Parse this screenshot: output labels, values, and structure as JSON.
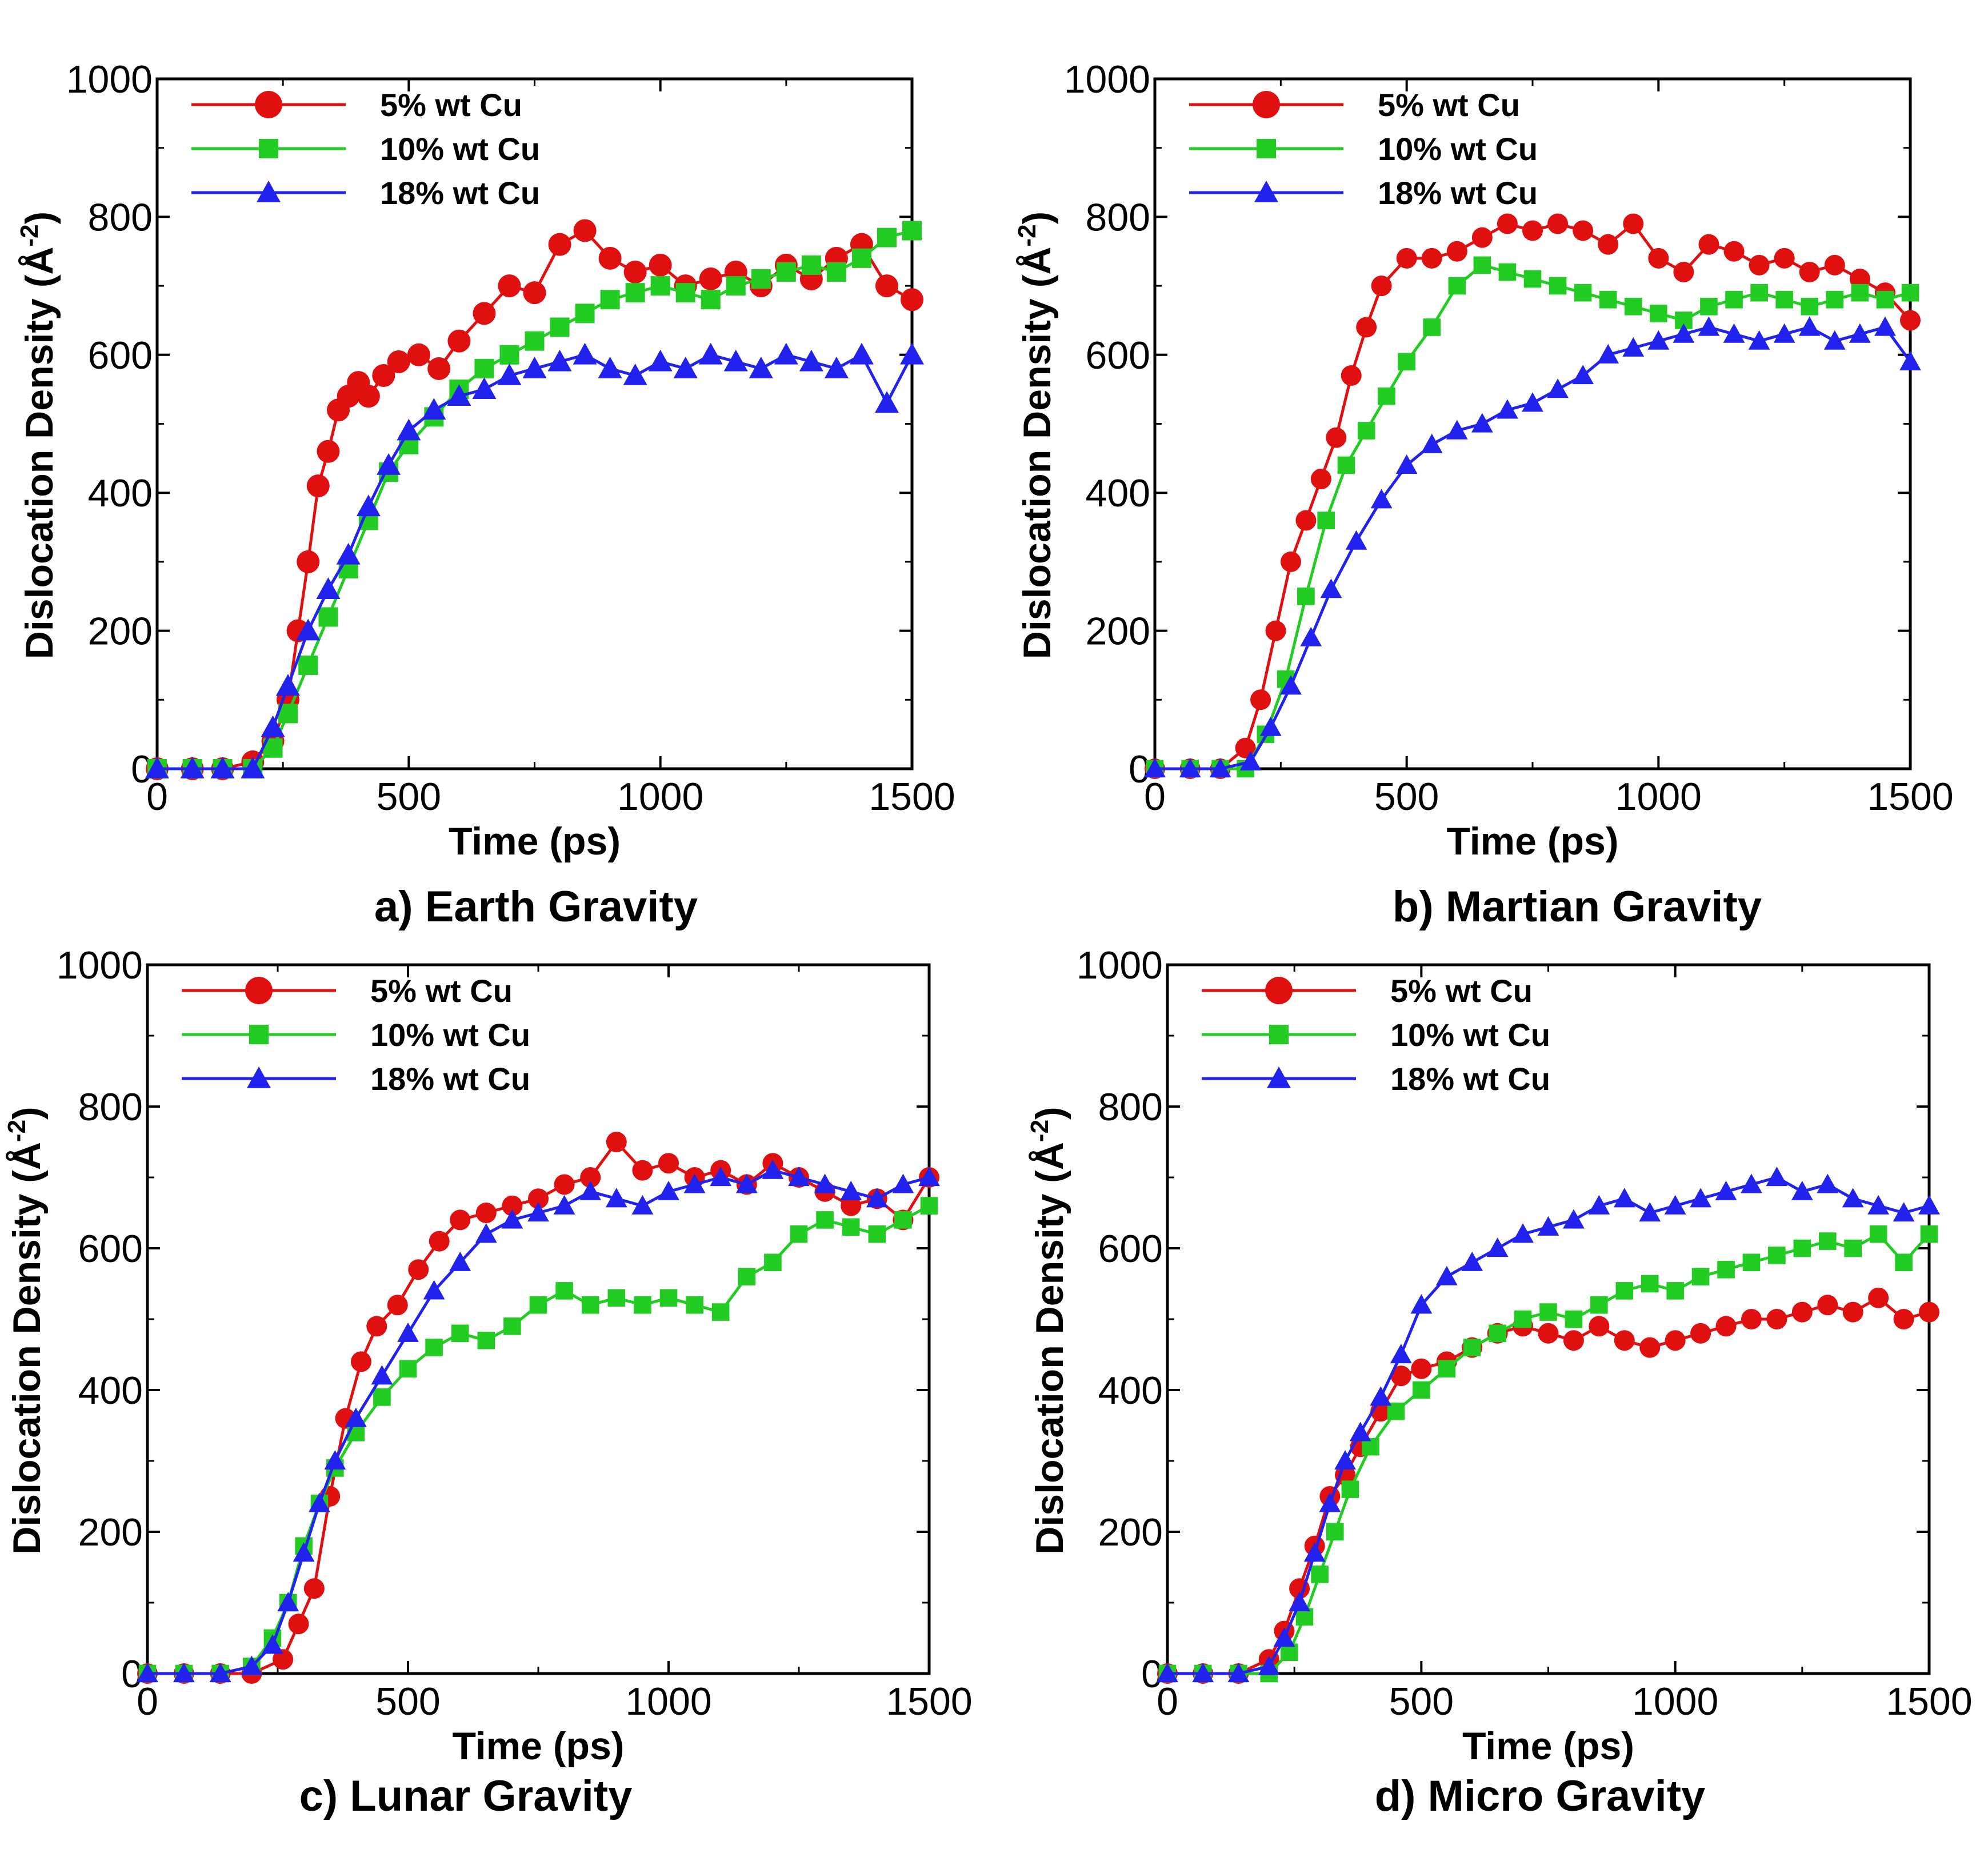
{
  "chart_data": [
    {
      "type": "line",
      "caption": "a) Earth Gravity",
      "xlabel": "Time (ps)",
      "ylabel": "Dislocation Density (Å",
      "ylabel_sup": "-2",
      "ylabel_close": ")",
      "xlim": [
        0,
        1500
      ],
      "ylim": [
        0,
        1000
      ],
      "xticks": [
        "0",
        "500",
        "1000",
        "1500"
      ],
      "yticks": [
        "0",
        "200",
        "400",
        "600",
        "800",
        "1000"
      ],
      "legend": "top-left",
      "series": [
        {
          "name": "5% wt Cu",
          "color": "#e01010",
          "marker": "circle",
          "x": [
            0,
            70,
            130,
            190,
            230,
            260,
            280,
            300,
            320,
            340,
            360,
            380,
            400,
            420,
            450,
            480,
            520,
            560,
            600,
            650,
            700,
            750,
            800,
            850,
            900,
            950,
            1000,
            1050,
            1100,
            1150,
            1200,
            1250,
            1300,
            1350,
            1400,
            1450,
            1500
          ],
          "y": [
            0,
            0,
            0,
            10,
            40,
            100,
            200,
            300,
            410,
            460,
            520,
            540,
            560,
            540,
            570,
            590,
            600,
            580,
            620,
            660,
            700,
            690,
            760,
            780,
            740,
            720,
            730,
            700,
            710,
            720,
            700,
            730,
            710,
            740,
            760,
            700,
            680
          ]
        },
        {
          "name": "10% wt Cu",
          "color": "#22cc22",
          "marker": "square",
          "x": [
            0,
            70,
            130,
            190,
            230,
            260,
            300,
            340,
            380,
            420,
            460,
            500,
            550,
            600,
            650,
            700,
            750,
            800,
            850,
            900,
            950,
            1000,
            1050,
            1100,
            1150,
            1200,
            1250,
            1300,
            1350,
            1400,
            1450,
            1500
          ],
          "y": [
            0,
            0,
            0,
            0,
            30,
            80,
            150,
            220,
            290,
            360,
            430,
            470,
            510,
            550,
            580,
            600,
            620,
            640,
            660,
            680,
            690,
            700,
            690,
            680,
            700,
            710,
            720,
            730,
            720,
            740,
            770,
            780
          ]
        },
        {
          "name": "18% wt Cu",
          "color": "#2222ee",
          "marker": "triangle",
          "x": [
            0,
            70,
            130,
            190,
            230,
            260,
            300,
            340,
            380,
            420,
            460,
            500,
            550,
            600,
            650,
            700,
            750,
            800,
            850,
            900,
            950,
            1000,
            1050,
            1100,
            1150,
            1200,
            1250,
            1300,
            1350,
            1400,
            1450,
            1500
          ],
          "y": [
            0,
            0,
            0,
            0,
            60,
            120,
            200,
            260,
            310,
            380,
            440,
            490,
            520,
            540,
            550,
            570,
            580,
            590,
            600,
            580,
            570,
            590,
            580,
            600,
            590,
            580,
            600,
            590,
            580,
            600,
            530,
            600
          ]
        }
      ]
    },
    {
      "type": "line",
      "caption": "b) Martian Gravity",
      "xlabel": "Time (ps)",
      "ylabel": "Dislocation Density (Å",
      "ylabel_sup": "-2",
      "ylabel_close": ")",
      "xlim": [
        0,
        1500
      ],
      "ylim": [
        0,
        1000
      ],
      "xticks": [
        "0",
        "500",
        "1000",
        "1500"
      ],
      "yticks": [
        "0",
        "200",
        "400",
        "600",
        "800",
        "1000"
      ],
      "legend": "top-left",
      "series": [
        {
          "name": "5% wt Cu",
          "color": "#e01010",
          "marker": "circle",
          "x": [
            0,
            70,
            130,
            180,
            210,
            240,
            270,
            300,
            330,
            360,
            390,
            420,
            450,
            500,
            550,
            600,
            650,
            700,
            750,
            800,
            850,
            900,
            950,
            1000,
            1050,
            1100,
            1150,
            1200,
            1250,
            1300,
            1350,
            1400,
            1450,
            1500
          ],
          "y": [
            0,
            0,
            0,
            30,
            100,
            200,
            300,
            360,
            420,
            480,
            570,
            640,
            700,
            740,
            740,
            750,
            770,
            790,
            780,
            790,
            780,
            760,
            790,
            740,
            720,
            760,
            750,
            730,
            740,
            720,
            730,
            710,
            690,
            650
          ]
        },
        {
          "name": "10% wt Cu",
          "color": "#22cc22",
          "marker": "square",
          "x": [
            0,
            70,
            130,
            180,
            220,
            260,
            300,
            340,
            380,
            420,
            460,
            500,
            550,
            600,
            650,
            700,
            750,
            800,
            850,
            900,
            950,
            1000,
            1050,
            1100,
            1150,
            1200,
            1250,
            1300,
            1350,
            1400,
            1450,
            1500
          ],
          "y": [
            0,
            0,
            0,
            0,
            50,
            130,
            250,
            360,
            440,
            490,
            540,
            590,
            640,
            700,
            730,
            720,
            710,
            700,
            690,
            680,
            670,
            660,
            650,
            670,
            680,
            690,
            680,
            670,
            680,
            690,
            680,
            690
          ]
        },
        {
          "name": "18% wt Cu",
          "color": "#2222ee",
          "marker": "triangle",
          "x": [
            0,
            70,
            130,
            190,
            230,
            270,
            310,
            350,
            400,
            450,
            500,
            550,
            600,
            650,
            700,
            750,
            800,
            850,
            900,
            950,
            1000,
            1050,
            1100,
            1150,
            1200,
            1250,
            1300,
            1350,
            1400,
            1450,
            1500
          ],
          "y": [
            0,
            0,
            0,
            10,
            60,
            120,
            190,
            260,
            330,
            390,
            440,
            470,
            490,
            500,
            520,
            530,
            550,
            570,
            600,
            610,
            620,
            630,
            640,
            630,
            620,
            630,
            640,
            620,
            630,
            640,
            590
          ]
        }
      ]
    },
    {
      "type": "line",
      "caption": "c) Lunar Gravity",
      "xlabel": "Time (ps)",
      "ylabel": "Dislocation Density (Å",
      "ylabel_sup": "-2",
      "ylabel_close": ")",
      "xlim": [
        0,
        1500
      ],
      "ylim": [
        0,
        1000
      ],
      "xticks": [
        "0",
        "500",
        "1000",
        "1500"
      ],
      "yticks": [
        "0",
        "200",
        "400",
        "600",
        "800",
        "1000"
      ],
      "legend": "top-left",
      "series": [
        {
          "name": "5% wt Cu",
          "color": "#e01010",
          "marker": "circle",
          "x": [
            0,
            70,
            140,
            200,
            260,
            290,
            320,
            350,
            380,
            410,
            440,
            480,
            520,
            560,
            600,
            650,
            700,
            750,
            800,
            850,
            900,
            950,
            1000,
            1050,
            1100,
            1150,
            1200,
            1250,
            1300,
            1350,
            1400,
            1450,
            1500
          ],
          "y": [
            0,
            0,
            0,
            0,
            20,
            70,
            120,
            250,
            360,
            440,
            490,
            520,
            570,
            610,
            640,
            650,
            660,
            670,
            690,
            700,
            750,
            710,
            720,
            700,
            710,
            690,
            720,
            700,
            680,
            660,
            670,
            640,
            700
          ]
        },
        {
          "name": "10% wt Cu",
          "color": "#22cc22",
          "marker": "square",
          "x": [
            0,
            70,
            140,
            200,
            240,
            270,
            300,
            330,
            360,
            400,
            450,
            500,
            550,
            600,
            650,
            700,
            750,
            800,
            850,
            900,
            950,
            1000,
            1050,
            1100,
            1150,
            1200,
            1250,
            1300,
            1350,
            1400,
            1450,
            1500
          ],
          "y": [
            0,
            0,
            0,
            10,
            50,
            100,
            180,
            240,
            290,
            340,
            390,
            430,
            460,
            480,
            470,
            490,
            520,
            540,
            520,
            530,
            520,
            530,
            520,
            510,
            560,
            580,
            620,
            640,
            630,
            620,
            640,
            660
          ]
        },
        {
          "name": "18% wt Cu",
          "color": "#2222ee",
          "marker": "triangle",
          "x": [
            0,
            70,
            140,
            200,
            240,
            270,
            300,
            330,
            360,
            400,
            450,
            500,
            550,
            600,
            650,
            700,
            750,
            800,
            850,
            900,
            950,
            1000,
            1050,
            1100,
            1150,
            1200,
            1250,
            1300,
            1350,
            1400,
            1450,
            1500
          ],
          "y": [
            0,
            0,
            0,
            10,
            40,
            100,
            170,
            240,
            300,
            360,
            420,
            480,
            540,
            580,
            620,
            640,
            650,
            660,
            680,
            670,
            660,
            680,
            690,
            700,
            690,
            710,
            700,
            690,
            680,
            670,
            690,
            700
          ]
        }
      ]
    },
    {
      "type": "line",
      "caption": "d) Micro Gravity",
      "xlabel": "Time (ps)",
      "ylabel": "Dislocation Density (Å",
      "ylabel_sup": "-2",
      "ylabel_close": ")",
      "xlim": [
        0,
        1500
      ],
      "ylim": [
        0,
        1000
      ],
      "xticks": [
        "0",
        "500",
        "1000",
        "1500"
      ],
      "yticks": [
        "0",
        "200",
        "400",
        "600",
        "800",
        "1000"
      ],
      "legend": "top-left",
      "series": [
        {
          "name": "5% wt Cu",
          "color": "#e01010",
          "marker": "circle",
          "x": [
            0,
            70,
            140,
            200,
            230,
            260,
            290,
            320,
            350,
            380,
            420,
            460,
            500,
            550,
            600,
            650,
            700,
            750,
            800,
            850,
            900,
            950,
            1000,
            1050,
            1100,
            1150,
            1200,
            1250,
            1300,
            1350,
            1400,
            1450,
            1500
          ],
          "y": [
            0,
            0,
            0,
            20,
            60,
            120,
            180,
            250,
            280,
            320,
            370,
            420,
            430,
            440,
            460,
            480,
            490,
            480,
            470,
            490,
            470,
            460,
            470,
            480,
            490,
            500,
            500,
            510,
            520,
            510,
            530,
            500,
            510
          ]
        },
        {
          "name": "10% wt Cu",
          "color": "#22cc22",
          "marker": "square",
          "x": [
            0,
            70,
            140,
            200,
            240,
            270,
            300,
            330,
            360,
            400,
            450,
            500,
            550,
            600,
            650,
            700,
            750,
            800,
            850,
            900,
            950,
            1000,
            1050,
            1100,
            1150,
            1200,
            1250,
            1300,
            1350,
            1400,
            1450,
            1500
          ],
          "y": [
            0,
            0,
            0,
            0,
            30,
            80,
            140,
            200,
            260,
            320,
            370,
            400,
            430,
            460,
            480,
            500,
            510,
            500,
            520,
            540,
            550,
            540,
            560,
            570,
            580,
            590,
            600,
            610,
            600,
            620,
            580,
            620
          ]
        },
        {
          "name": "18% wt Cu",
          "color": "#2222ee",
          "marker": "triangle",
          "x": [
            0,
            70,
            140,
            200,
            230,
            260,
            290,
            320,
            350,
            380,
            420,
            460,
            500,
            550,
            600,
            650,
            700,
            750,
            800,
            850,
            900,
            950,
            1000,
            1050,
            1100,
            1150,
            1200,
            1250,
            1300,
            1350,
            1400,
            1450,
            1500
          ],
          "y": [
            0,
            0,
            0,
            10,
            50,
            100,
            170,
            240,
            300,
            340,
            390,
            450,
            520,
            560,
            580,
            600,
            620,
            630,
            640,
            660,
            670,
            650,
            660,
            670,
            680,
            690,
            700,
            680,
            690,
            670,
            660,
            650,
            660
          ]
        }
      ]
    }
  ]
}
